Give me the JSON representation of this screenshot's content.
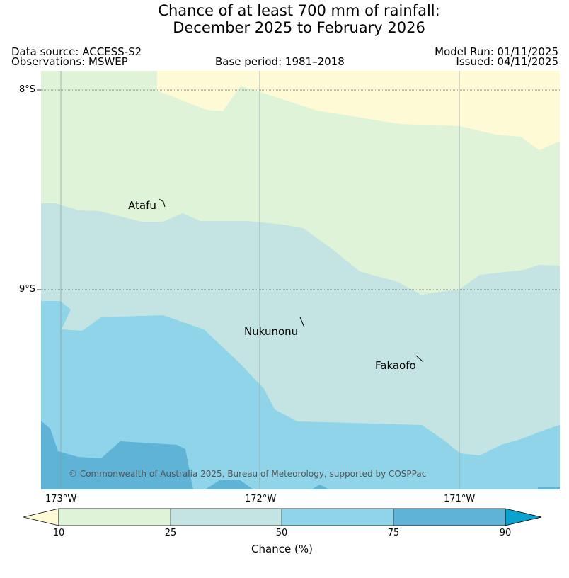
{
  "title": {
    "line1": "Chance of at least 700 mm of rainfall:",
    "line2": "December 2025 to February 2026"
  },
  "meta": {
    "data_source": "Data source: ACCESS-S2",
    "observations": "Observations: MSWEP",
    "base_period": "Base period: 1981–2018",
    "model_run": "Model Run: 01/11/2025",
    "issued": "Issued: 04/11/2025"
  },
  "map": {
    "lat_labels": [
      "8°S",
      "9°S"
    ],
    "lon_labels": [
      "173°W",
      "172°W",
      "171°W"
    ],
    "places": [
      "Atafu",
      "Nukunonu",
      "Fakaofo"
    ],
    "copyright": "© Commonwealth of Australia 2025, Bureau of Meteorology, supported by COSPPac"
  },
  "colorbar": {
    "title": "Chance (%)",
    "ticks": [
      "10",
      "25",
      "50",
      "75",
      "90"
    ],
    "bins": [
      {
        "range": "<10",
        "color": "#fefad6"
      },
      {
        "range": "10-25",
        "color": "#dff3d9"
      },
      {
        "range": "25-50",
        "color": "#c3e4e2"
      },
      {
        "range": "50-75",
        "color": "#8fd4e9"
      },
      {
        "range": "75-90",
        "color": "#5fb3d6"
      },
      {
        "range": ">90",
        "color": "#0aa3cf"
      }
    ]
  }
}
